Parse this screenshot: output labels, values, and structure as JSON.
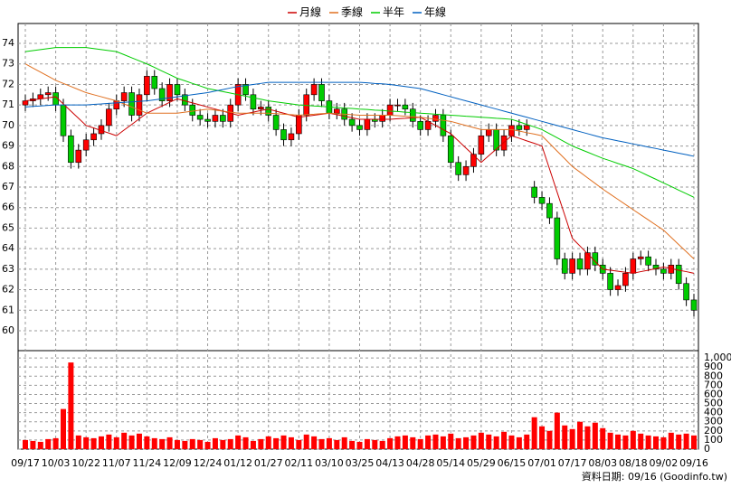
{
  "chart_data": {
    "type": "candlestick",
    "categories": [
      "09/17",
      null,
      null,
      null,
      "10/03",
      null,
      null,
      null,
      "10/22",
      null,
      null,
      null,
      "11/07",
      null,
      null,
      null,
      "11/24",
      null,
      null,
      null,
      "12/09",
      null,
      null,
      null,
      "12/24",
      null,
      null,
      null,
      "01/12",
      null,
      null,
      null,
      "01/27",
      null,
      null,
      null,
      "02/11",
      null,
      null,
      null,
      "03/10",
      null,
      null,
      null,
      "03/25",
      null,
      null,
      null,
      "04/13",
      null,
      null,
      null,
      "04/28",
      null,
      null,
      null,
      "05/14",
      null,
      null,
      null,
      "05/29",
      null,
      null,
      null,
      "06/15",
      null,
      null,
      null,
      "07/01",
      null,
      null,
      null,
      "07/17",
      null,
      null,
      null,
      "08/03",
      null,
      null,
      null,
      "08/18",
      null,
      null,
      null,
      "09/02",
      null,
      null,
      null,
      "09/16"
    ],
    "open": [
      71.0,
      71.2,
      71.3,
      71.5,
      71.6,
      71.0,
      69.5,
      68.2,
      68.8,
      69.3,
      69.6,
      70.0,
      70.8,
      71.2,
      71.6,
      70.5,
      71.5,
      72.4,
      71.8,
      71.2,
      72.0,
      71.5,
      71.0,
      70.5,
      70.3,
      70.2,
      70.5,
      70.2,
      71.0,
      72.0,
      71.5,
      70.8,
      70.9,
      70.5,
      69.8,
      69.3,
      69.6,
      70.5,
      71.5,
      72.0,
      71.2,
      70.6,
      70.8,
      70.3,
      70.0,
      69.8,
      70.3,
      70.2,
      70.5,
      71.0,
      71.0,
      70.8,
      70.2,
      69.8,
      70.2,
      70.5,
      69.5,
      68.2,
      67.6,
      68.0,
      68.6,
      69.5,
      69.8,
      68.8,
      69.5,
      70.0,
      69.8,
      67.0,
      66.5,
      66.2,
      65.5,
      63.5,
      62.8,
      63.5,
      63.0,
      63.8,
      63.2,
      62.8,
      62.0,
      62.2,
      62.8,
      63.5,
      63.6,
      63.2,
      63.0,
      62.8,
      63.2,
      62.3,
      61.5
    ],
    "high": [
      71.5,
      71.6,
      71.8,
      71.9,
      71.9,
      71.3,
      69.8,
      69.1,
      69.6,
      69.9,
      70.3,
      71.1,
      71.5,
      71.9,
      71.9,
      71.8,
      72.7,
      72.7,
      72.1,
      72.3,
      72.3,
      71.8,
      71.3,
      70.8,
      70.6,
      70.8,
      70.8,
      71.3,
      72.3,
      72.3,
      71.8,
      71.2,
      71.2,
      70.8,
      70.1,
      69.9,
      70.8,
      71.8,
      72.3,
      72.3,
      71.5,
      71.1,
      71.1,
      70.6,
      70.3,
      70.6,
      70.6,
      70.8,
      71.3,
      71.3,
      71.3,
      71.1,
      70.5,
      70.5,
      70.8,
      70.8,
      69.8,
      68.5,
      68.3,
      68.9,
      69.8,
      70.1,
      70.1,
      69.8,
      70.3,
      70.3,
      70.3,
      67.3,
      66.8,
      66.5,
      65.8,
      63.8,
      63.8,
      63.8,
      64.1,
      64.1,
      63.5,
      63.1,
      62.5,
      63.1,
      63.8,
      63.9,
      63.9,
      63.5,
      63.3,
      63.5,
      63.5,
      62.6,
      61.8
    ],
    "low": [
      70.7,
      70.9,
      71.0,
      71.2,
      70.7,
      69.2,
      67.9,
      67.9,
      68.5,
      69.0,
      69.3,
      69.7,
      70.5,
      70.9,
      70.2,
      70.2,
      71.2,
      71.5,
      70.9,
      70.9,
      71.2,
      70.7,
      70.2,
      70.0,
      69.9,
      69.9,
      69.9,
      69.9,
      70.7,
      71.2,
      70.5,
      70.5,
      70.2,
      69.5,
      69.0,
      69.0,
      69.3,
      70.2,
      71.2,
      70.9,
      70.3,
      70.3,
      70.0,
      69.7,
      69.5,
      69.5,
      69.9,
      69.9,
      70.2,
      70.7,
      70.5,
      69.9,
      69.5,
      69.5,
      69.9,
      69.2,
      67.9,
      67.3,
      67.3,
      67.7,
      68.3,
      69.2,
      68.5,
      68.5,
      69.2,
      69.5,
      69.5,
      66.2,
      65.9,
      65.2,
      63.2,
      62.5,
      62.5,
      62.7,
      62.7,
      62.9,
      62.5,
      61.7,
      61.7,
      61.9,
      62.5,
      63.2,
      62.9,
      62.7,
      62.5,
      62.5,
      62.0,
      61.2,
      60.7
    ],
    "close": [
      71.2,
      71.3,
      71.5,
      71.6,
      71.0,
      69.5,
      68.2,
      68.8,
      69.3,
      69.6,
      70.0,
      70.8,
      71.2,
      71.6,
      70.5,
      71.5,
      72.4,
      71.8,
      71.2,
      72.0,
      71.5,
      71.0,
      70.5,
      70.3,
      70.2,
      70.5,
      70.2,
      71.0,
      72.0,
      71.5,
      70.8,
      70.9,
      70.5,
      69.8,
      69.3,
      69.6,
      70.5,
      71.5,
      72.0,
      71.2,
      70.6,
      70.8,
      70.3,
      70.0,
      69.8,
      70.3,
      70.2,
      70.5,
      71.0,
      71.0,
      70.8,
      70.2,
      69.8,
      70.2,
      70.5,
      69.5,
      68.2,
      67.6,
      68.0,
      68.6,
      69.5,
      69.8,
      68.8,
      69.5,
      70.0,
      69.8,
      70.0,
      66.5,
      66.2,
      65.5,
      63.5,
      62.8,
      63.5,
      63.0,
      63.8,
      63.2,
      62.8,
      62.0,
      62.2,
      62.8,
      63.5,
      63.6,
      63.2,
      63.0,
      62.8,
      63.2,
      62.3,
      61.5,
      61.0
    ],
    "up_color": "#ff0000",
    "down_color": "#00cc00",
    "series": [
      {
        "name": "月線",
        "color": "#cc0000",
        "values": [
          71.2,
          71.25,
          71.3,
          71.35,
          71.4,
          71.05,
          70.7,
          70.35,
          70.0,
          69.88,
          69.75,
          69.63,
          69.5,
          69.78,
          70.05,
          70.33,
          70.6,
          70.78,
          70.95,
          71.13,
          71.3,
          71.2,
          71.1,
          71.0,
          70.9,
          70.8,
          70.7,
          70.6,
          70.5,
          70.58,
          70.65,
          70.73,
          70.8,
          70.7,
          70.6,
          70.5,
          70.4,
          70.45,
          70.5,
          70.55,
          70.6,
          70.53,
          70.45,
          70.38,
          70.3,
          70.3,
          70.3,
          70.3,
          70.3,
          70.33,
          70.35,
          70.38,
          70.4,
          70.2,
          70.0,
          69.8,
          69.6,
          69.25,
          68.9,
          68.55,
          68.2,
          68.53,
          68.85,
          69.18,
          69.5,
          69.38,
          69.25,
          69.13,
          69.0,
          67.88,
          66.75,
          65.63,
          64.5,
          64.13,
          63.75,
          63.38,
          63.0,
          62.95,
          62.9,
          62.85,
          62.8,
          62.88,
          62.95,
          63.03,
          63.1,
          63.03,
          62.95,
          62.88,
          62.8
        ]
      },
      {
        "name": "季線",
        "color": "#e07020",
        "values": [
          73.0,
          72.8,
          72.6,
          72.4,
          72.2,
          72.05,
          71.9,
          71.75,
          71.6,
          71.5,
          71.4,
          71.3,
          71.2,
          71.05,
          70.9,
          70.75,
          70.6,
          70.6,
          70.6,
          70.6,
          70.6,
          70.65,
          70.7,
          70.75,
          70.8,
          70.75,
          70.7,
          70.65,
          70.6,
          70.6,
          70.6,
          70.6,
          70.6,
          70.58,
          70.55,
          70.53,
          70.5,
          70.53,
          70.55,
          70.58,
          70.6,
          70.58,
          70.55,
          70.53,
          70.5,
          70.5,
          70.5,
          70.5,
          70.5,
          70.48,
          70.45,
          70.43,
          70.4,
          70.35,
          70.3,
          70.25,
          70.2,
          70.1,
          70.0,
          69.9,
          69.8,
          69.8,
          69.8,
          69.8,
          69.8,
          69.73,
          69.65,
          69.58,
          69.5,
          69.13,
          68.75,
          68.38,
          68.0,
          67.73,
          67.45,
          67.18,
          66.9,
          66.65,
          66.4,
          66.15,
          65.9,
          65.65,
          65.4,
          65.15,
          64.9,
          64.55,
          64.2,
          63.85,
          63.5
        ]
      },
      {
        "name": "半年",
        "color": "#00cc00",
        "values": [
          73.6,
          73.65,
          73.7,
          73.75,
          73.8,
          73.8,
          73.8,
          73.8,
          73.8,
          73.75,
          73.7,
          73.65,
          73.6,
          73.45,
          73.3,
          73.15,
          73.0,
          72.83,
          72.65,
          72.48,
          72.3,
          72.18,
          72.05,
          71.93,
          71.8,
          71.73,
          71.65,
          71.58,
          71.5,
          71.43,
          71.35,
          71.28,
          71.2,
          71.15,
          71.1,
          71.05,
          71.0,
          70.98,
          70.95,
          70.93,
          70.9,
          70.88,
          70.85,
          70.83,
          70.8,
          70.78,
          70.75,
          70.73,
          70.7,
          70.68,
          70.65,
          70.63,
          70.6,
          70.58,
          70.55,
          70.53,
          70.5,
          70.48,
          70.45,
          70.43,
          70.4,
          70.38,
          70.35,
          70.33,
          70.3,
          70.18,
          70.05,
          69.93,
          69.8,
          69.6,
          69.4,
          69.2,
          69.0,
          68.85,
          68.7,
          68.55,
          68.4,
          68.28,
          68.15,
          68.03,
          67.9,
          67.73,
          67.55,
          67.38,
          67.2,
          67.03,
          66.85,
          66.68,
          66.5
        ]
      },
      {
        "name": "年線",
        "color": "#0060c0",
        "values": [
          70.9,
          70.93,
          70.95,
          70.98,
          71.0,
          71.0,
          71.0,
          71.0,
          71.0,
          71.03,
          71.05,
          71.08,
          71.1,
          71.13,
          71.15,
          71.18,
          71.2,
          71.25,
          71.3,
          71.35,
          71.4,
          71.45,
          71.5,
          71.55,
          71.6,
          71.68,
          71.75,
          71.83,
          71.9,
          71.95,
          72.0,
          72.05,
          72.1,
          72.1,
          72.1,
          72.1,
          72.1,
          72.1,
          72.1,
          72.1,
          72.1,
          72.1,
          72.1,
          72.1,
          72.1,
          72.08,
          72.05,
          72.03,
          72.0,
          71.95,
          71.9,
          71.85,
          71.8,
          71.7,
          71.6,
          71.5,
          71.4,
          71.3,
          71.2,
          71.1,
          71.0,
          70.9,
          70.8,
          70.7,
          70.6,
          70.5,
          70.4,
          70.3,
          70.2,
          70.1,
          70.0,
          69.9,
          69.8,
          69.7,
          69.6,
          69.5,
          69.4,
          69.33,
          69.25,
          69.18,
          69.1,
          69.03,
          68.95,
          68.88,
          68.8,
          68.73,
          68.65,
          68.58,
          68.5
        ]
      }
    ],
    "ylim": [
      59.03,
      74.97
    ],
    "yticks": [
      60,
      61,
      62,
      63,
      64,
      65,
      66,
      67,
      68,
      69,
      70,
      71,
      72,
      73,
      74
    ],
    "grid": true,
    "volume": {
      "color": "#ff0000",
      "values": [
        100,
        90,
        80,
        110,
        120,
        440,
        950,
        150,
        130,
        120,
        140,
        160,
        130,
        180,
        150,
        170,
        140,
        120,
        110,
        130,
        100,
        90,
        110,
        100,
        80,
        120,
        100,
        110,
        150,
        130,
        90,
        110,
        140,
        120,
        150,
        130,
        100,
        160,
        140,
        110,
        120,
        100,
        130,
        90,
        80,
        110,
        100,
        90,
        120,
        140,
        150,
        130,
        110,
        150,
        160,
        140,
        170,
        120,
        130,
        150,
        180,
        160,
        140,
        190,
        150,
        130,
        160,
        350,
        250,
        200,
        400,
        260,
        220,
        300,
        250,
        290,
        230,
        180,
        160,
        150,
        200,
        170,
        150,
        140,
        130,
        180,
        160,
        170,
        150
      ],
      "ylim": [
        0,
        1080
      ],
      "yticks": [
        0,
        100,
        200,
        300,
        400,
        500,
        600,
        700,
        800,
        900,
        {
          "value": 1000,
          "label": "1,000"
        }
      ]
    },
    "footer": "資料日期: 09/16  (Goodinfo.tw)"
  }
}
